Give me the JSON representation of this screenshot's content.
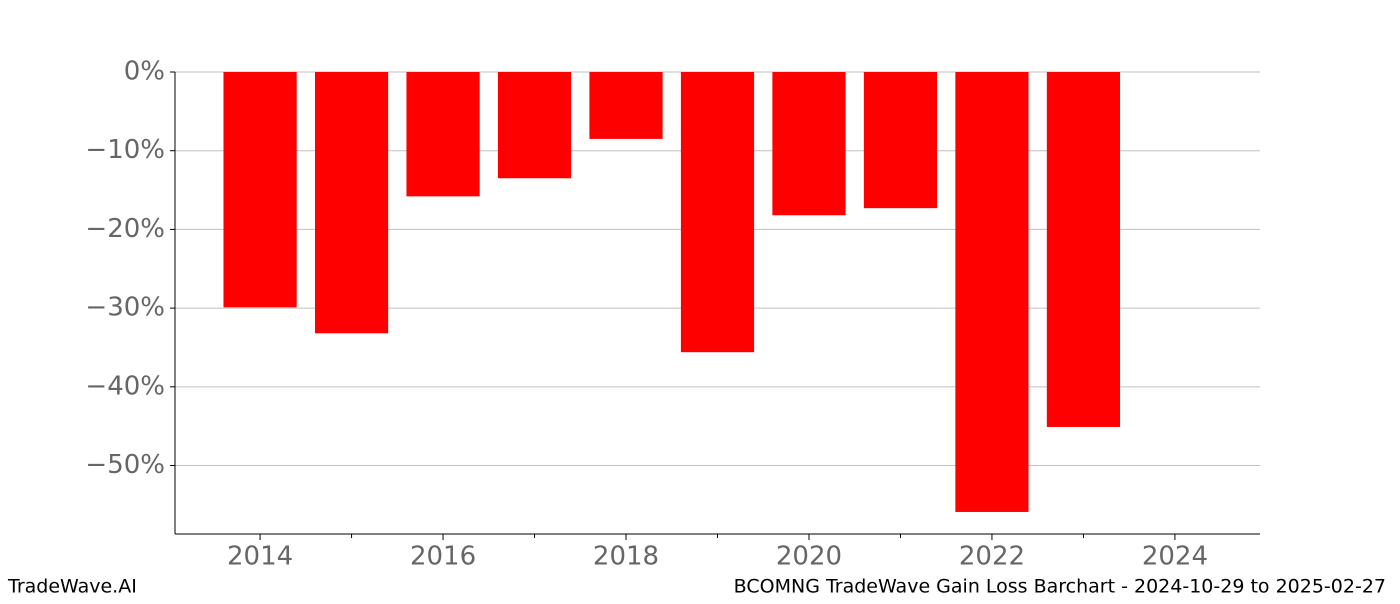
{
  "chart_data": {
    "type": "bar",
    "title": "BCOMNG TradeWave Gain Loss Barchart - 2024-10-29 to 2025-02-27",
    "watermark": "TradeWave.AI",
    "x": [
      2014,
      2015,
      2016,
      2017,
      2018,
      2019,
      2020,
      2021,
      2022,
      2023
    ],
    "values": [
      -29.9,
      -33.2,
      -15.8,
      -13.5,
      -8.5,
      -35.6,
      -18.2,
      -17.3,
      -55.9,
      -45.1
    ],
    "color": "#ff0000",
    "xlim": [
      2013.07,
      2024.93
    ],
    "xticks": [
      2014,
      2016,
      2018,
      2020,
      2022,
      2024
    ],
    "xticks_minor": [
      2015,
      2017,
      2019,
      2021,
      2023
    ],
    "ylim": [
      -58.7,
      0
    ],
    "yticks": [
      {
        "value": 0,
        "label": "0%"
      },
      {
        "value": -10,
        "label": "−10%"
      },
      {
        "value": -20,
        "label": "−20%"
      },
      {
        "value": -30,
        "label": "−30%"
      },
      {
        "value": -40,
        "label": "−40%"
      },
      {
        "value": -50,
        "label": "−50%"
      }
    ],
    "grid": true
  }
}
